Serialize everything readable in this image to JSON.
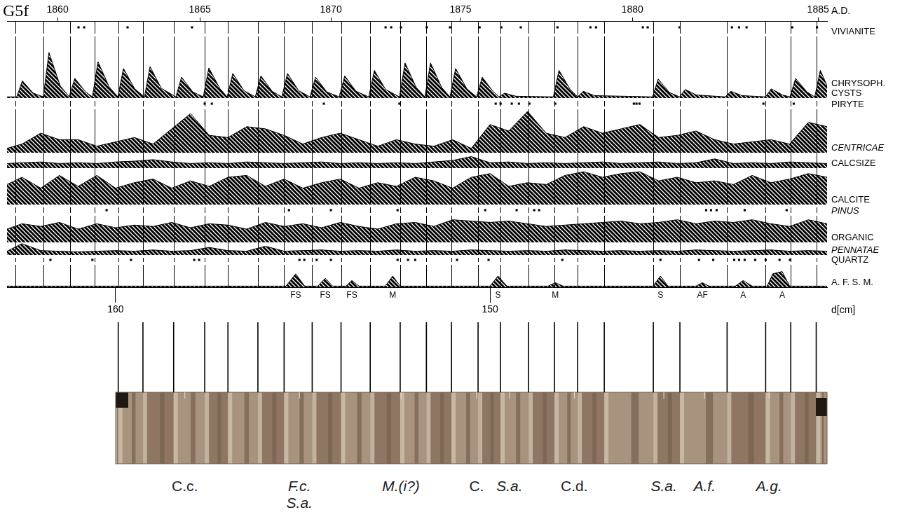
{
  "chart_data": {
    "type": "line",
    "title": "G5f",
    "xlabel": "d[cm]",
    "x2label": "A.D.",
    "xlim": [
      162.9,
      141.0
    ],
    "xticks": [
      160,
      150
    ],
    "x2ticks": [
      {
        "value": 161.55,
        "label": "1860"
      },
      {
        "value": 157.75,
        "label": "1865"
      },
      {
        "value": 154.25,
        "label": "1870"
      },
      {
        "value": 150.79,
        "label": "1875"
      },
      {
        "value": 146.2,
        "label": "1880"
      },
      {
        "value": 141.24,
        "label": "1885"
      }
    ],
    "tick_labels": "x",
    "varve_boundaries": [
      162.68,
      161.93,
      161.22,
      160.56,
      159.93,
      159.27,
      158.45,
      157.62,
      157.0,
      156.2,
      155.5,
      154.75,
      153.98,
      153.2,
      152.4,
      151.7,
      151.03,
      150.32,
      149.72,
      148.97,
      148.28,
      147.66,
      146.95,
      145.64,
      144.93,
      143.67,
      142.64,
      141.97,
      141.29
    ],
    "x": [
      162.9,
      162.5,
      162.0,
      161.5,
      161.0,
      160.5,
      160.0,
      159.5,
      159.0,
      158.5,
      158.0,
      157.5,
      157.0,
      156.5,
      156.0,
      155.5,
      155.0,
      154.5,
      154.0,
      153.5,
      153.0,
      152.5,
      152.0,
      151.5,
      151.0,
      150.5,
      150.0,
      149.5,
      149.0,
      148.5,
      148.0,
      147.5,
      147.0,
      146.5,
      146.0,
      145.5,
      145.0,
      144.5,
      144.0,
      143.5,
      143.0,
      142.5,
      142.0,
      141.5,
      141.0
    ],
    "series": [
      {
        "name": "VIVIANITE",
        "type": "scatter",
        "marker": "square",
        "color": "#000000",
        "ylim": [
          0,
          2
        ],
        "x": [
          160.99,
          160.84,
          159.68,
          157.96,
          152.79,
          152.64,
          152.38,
          151.69,
          151.07,
          150.28,
          149.7,
          149.18,
          148.2,
          147.32,
          147.17,
          145.92,
          145.79,
          144.94,
          143.54,
          143.35,
          143.15,
          141.93,
          141.27
        ],
        "values": [
          1,
          1,
          1,
          1,
          1,
          1,
          1,
          1,
          1,
          1,
          1,
          1,
          1,
          1,
          1,
          1,
          1,
          1,
          1,
          1,
          1,
          1,
          1
        ]
      },
      {
        "name": "CHRYSOPH. CYSTS",
        "type": "area",
        "color": "#000000",
        "ylim": [
          0,
          1
        ],
        "x": [
          162.9,
          162.64,
          162.49,
          162.2,
          161.93,
          161.78,
          161.48,
          161.24,
          161.09,
          160.8,
          160.62,
          160.47,
          160.17,
          159.94,
          159.79,
          159.49,
          159.23,
          159.08,
          158.78,
          158.39,
          158.24,
          157.94,
          157.66,
          157.51,
          157.21,
          157.02,
          156.87,
          156.57,
          156.27,
          156.12,
          155.82,
          155.56,
          155.41,
          155.11,
          154.81,
          154.66,
          154.36,
          154.03,
          153.88,
          153.58,
          153.24,
          153.09,
          152.79,
          152.42,
          152.27,
          151.97,
          151.74,
          151.59,
          151.29,
          151.07,
          150.92,
          150.62,
          150.36,
          150.21,
          149.91,
          149.76,
          149.61,
          149.31,
          148.31,
          148.16,
          147.86,
          147.66,
          147.51,
          147.21,
          145.66,
          145.51,
          145.21,
          144.94,
          144.79,
          144.49,
          143.72,
          143.57,
          143.27,
          142.64,
          142.49,
          142.19,
          141.99,
          141.84,
          141.54,
          141.33,
          141.18,
          141.0
        ],
        "values": [
          0.02,
          0.02,
          0.28,
          0.08,
          0.02,
          0.74,
          0.2,
          0.02,
          0.32,
          0.1,
          0.02,
          0.59,
          0.18,
          0.02,
          0.48,
          0.15,
          0.02,
          0.51,
          0.16,
          0.02,
          0.34,
          0.1,
          0.02,
          0.49,
          0.15,
          0.02,
          0.4,
          0.12,
          0.02,
          0.36,
          0.11,
          0.02,
          0.4,
          0.12,
          0.02,
          0.34,
          0.1,
          0.02,
          0.36,
          0.11,
          0.02,
          0.45,
          0.14,
          0.02,
          0.57,
          0.17,
          0.02,
          0.57,
          0.17,
          0.02,
          0.48,
          0.15,
          0.02,
          0.34,
          0.1,
          0.02,
          0.08,
          0.03,
          0.02,
          0.45,
          0.14,
          0.02,
          0.11,
          0.04,
          0.02,
          0.31,
          0.09,
          0.02,
          0.14,
          0.05,
          0.02,
          0.11,
          0.04,
          0.02,
          0.15,
          0.05,
          0.02,
          0.32,
          0.1,
          0.02,
          0.45,
          0.2
        ]
      },
      {
        "name": "PIRYTE",
        "type": "scatter",
        "marker": "square",
        "color": "#000000",
        "ylim": [
          0,
          2
        ],
        "x": [
          157.62,
          157.43,
          154.44,
          152.42,
          149.85,
          149.72,
          149.42,
          149.23,
          148.95,
          148.26,
          146.16,
          146.09,
          146.01,
          142.7,
          141.89
        ],
        "values": [
          1,
          1,
          1,
          1,
          1,
          1,
          1,
          1,
          1,
          1,
          1,
          1,
          1,
          1,
          1
        ]
      },
      {
        "name": "CENTRICAE",
        "type": "area",
        "color": "#000000",
        "ylim": [
          0,
          1
        ],
        "values": [
          0.1,
          0.2,
          0.45,
          0.3,
          0.3,
          0.15,
          0.25,
          0.35,
          0.2,
          0.55,
          0.9,
          0.4,
          0.35,
          0.6,
          0.55,
          0.4,
          0.2,
          0.35,
          0.45,
          0.3,
          0.15,
          0.3,
          0.2,
          0.15,
          0.3,
          0.1,
          0.65,
          0.5,
          0.95,
          0.45,
          0.35,
          0.6,
          0.45,
          0.55,
          0.65,
          0.35,
          0.4,
          0.5,
          0.3,
          0.2,
          0.25,
          0.3,
          0.2,
          0.7,
          0.6
        ]
      },
      {
        "name": "CALCSIZE",
        "type": "area",
        "color": "#000000",
        "ylim": [
          0,
          1
        ],
        "values": [
          0.3,
          0.35,
          0.4,
          0.3,
          0.35,
          0.3,
          0.4,
          0.45,
          0.55,
          0.4,
          0.3,
          0.35,
          0.3,
          0.4,
          0.35,
          0.3,
          0.35,
          0.4,
          0.3,
          0.35,
          0.3,
          0.35,
          0.3,
          0.4,
          0.5,
          0.75,
          0.35,
          0.4,
          0.3,
          0.35,
          0.3,
          0.35,
          0.4,
          0.3,
          0.35,
          0.4,
          0.3,
          0.35,
          0.6,
          0.3,
          0.35,
          0.3,
          0.4,
          0.35,
          0.3
        ]
      },
      {
        "name": "CALCITE",
        "type": "area",
        "color": "#000000",
        "ylim": [
          0,
          1
        ],
        "values": [
          0.55,
          0.75,
          0.45,
          0.8,
          0.5,
          0.8,
          0.45,
          0.6,
          0.7,
          0.45,
          0.65,
          0.5,
          0.75,
          0.8,
          0.5,
          0.7,
          0.45,
          0.6,
          0.7,
          0.45,
          0.6,
          0.5,
          0.75,
          0.65,
          0.45,
          0.75,
          0.85,
          0.5,
          0.6,
          0.55,
          0.8,
          0.9,
          0.75,
          0.85,
          0.9,
          0.65,
          0.75,
          0.6,
          0.65,
          0.55,
          0.8,
          0.6,
          0.7,
          0.85,
          0.75
        ]
      },
      {
        "name": "PINUS",
        "type": "scatter",
        "marker": "square",
        "color": "#000000",
        "ylim": [
          0,
          2
        ],
        "x": [
          160.24,
          155.37,
          154.25,
          152.47,
          150.13,
          149.29,
          148.82,
          148.69,
          144.23,
          144.1,
          143.95,
          143.2,
          142.08
        ],
        "values": [
          1,
          1,
          1,
          1,
          1,
          1,
          1,
          1,
          1,
          1,
          1,
          1,
          1
        ]
      },
      {
        "name": "ORGANIC",
        "type": "area",
        "color": "#000000",
        "ylim": [
          0,
          1
        ],
        "values": [
          0.5,
          0.7,
          0.6,
          0.75,
          0.5,
          0.7,
          0.55,
          0.65,
          0.6,
          0.75,
          0.55,
          0.7,
          0.65,
          0.5,
          0.75,
          0.6,
          0.7,
          0.55,
          0.75,
          0.6,
          0.5,
          0.7,
          0.75,
          0.6,
          0.85,
          0.8,
          0.75,
          0.8,
          0.7,
          0.6,
          0.65,
          0.7,
          0.75,
          0.8,
          0.7,
          0.75,
          0.85,
          0.7,
          0.8,
          0.75,
          0.85,
          0.7,
          0.6,
          0.85,
          0.7
        ]
      },
      {
        "name": "PENNATAE",
        "type": "area",
        "color": "#000000",
        "ylim": [
          0,
          1
        ],
        "values": [
          0.3,
          0.9,
          0.35,
          0.3,
          0.25,
          0.3,
          0.35,
          0.3,
          0.4,
          0.3,
          0.35,
          0.6,
          0.35,
          0.3,
          0.7,
          0.3,
          0.35,
          0.4,
          0.3,
          0.35,
          0.3,
          0.4,
          0.3,
          0.35,
          0.3,
          0.4,
          0.35,
          0.3,
          0.35,
          0.3,
          0.4,
          0.35,
          0.3,
          0.35,
          0.3,
          0.35,
          0.3,
          0.4,
          0.35,
          0.3,
          0.35,
          0.4,
          0.3,
          0.35,
          0.3
        ]
      },
      {
        "name": "QUARTZ",
        "type": "scatter",
        "marker": "square",
        "color": "#000000",
        "ylim": [
          0,
          2
        ],
        "x": [
          161.74,
          160.62,
          159.59,
          157.9,
          157.77,
          155.09,
          154.96,
          154.63,
          154.25,
          152.47,
          152.19,
          152.0,
          150.88,
          150.04,
          148.07,
          145.45,
          144.42,
          144.04,
          143.48,
          143.35,
          143.2,
          142.92,
          142.64,
          142.27,
          141.99
        ],
        "values": [
          1,
          1,
          1,
          1,
          1,
          1,
          1,
          1,
          1,
          1,
          1,
          1,
          1,
          1,
          1,
          1,
          1,
          1,
          1,
          1,
          1,
          1,
          1,
          1,
          1
        ]
      },
      {
        "name": "A. F. S. M.",
        "type": "area",
        "color": "#000000",
        "ylim": [
          0,
          1
        ],
        "x": [
          162.9,
          155.45,
          155.19,
          154.95,
          154.6,
          154.4,
          154.2,
          153.85,
          153.69,
          153.5,
          152.8,
          152.6,
          152.4,
          150.0,
          149.79,
          149.55,
          148.45,
          148.26,
          148.05,
          145.65,
          145.45,
          145.25,
          144.5,
          144.33,
          144.15,
          143.45,
          143.24,
          143.0,
          142.6,
          142.45,
          142.2,
          142.0,
          141.0
        ],
        "values": [
          0.05,
          0.05,
          0.6,
          0.05,
          0.05,
          0.4,
          0.05,
          0.05,
          0.3,
          0.05,
          0.05,
          0.5,
          0.05,
          0.05,
          0.5,
          0.05,
          0.05,
          0.2,
          0.05,
          0.05,
          0.5,
          0.05,
          0.05,
          0.2,
          0.05,
          0.05,
          0.3,
          0.05,
          0.05,
          0.6,
          0.7,
          0.05,
          0.05
        ]
      }
    ],
    "annotations": [
      {
        "x": 155.19,
        "text": "FS"
      },
      {
        "x": 154.4,
        "text": "FS"
      },
      {
        "x": 153.69,
        "text": "FS"
      },
      {
        "x": 152.6,
        "text": "M"
      },
      {
        "x": 149.79,
        "text": "S"
      },
      {
        "x": 148.26,
        "text": "M"
      },
      {
        "x": 145.45,
        "text": "S"
      },
      {
        "x": 144.33,
        "text": "AF"
      },
      {
        "x": 143.24,
        "text": "A"
      },
      {
        "x": 142.2,
        "text": "A"
      }
    ]
  },
  "core_photo": {
    "labels": [
      {
        "x": 158.15,
        "text": "C.c."
      },
      {
        "x": 155.09,
        "text": "F.c. S.a."
      },
      {
        "x": 152.38,
        "text": "M.(i?)"
      },
      {
        "x": 150.36,
        "text": "C."
      },
      {
        "x": 149.48,
        "text": "S.a."
      },
      {
        "x": 147.75,
        "text": "C.d."
      },
      {
        "x": 145.36,
        "text": "S.a."
      },
      {
        "x": 144.27,
        "text": "A.f."
      },
      {
        "x": 142.55,
        "text": "A.g."
      }
    ]
  }
}
